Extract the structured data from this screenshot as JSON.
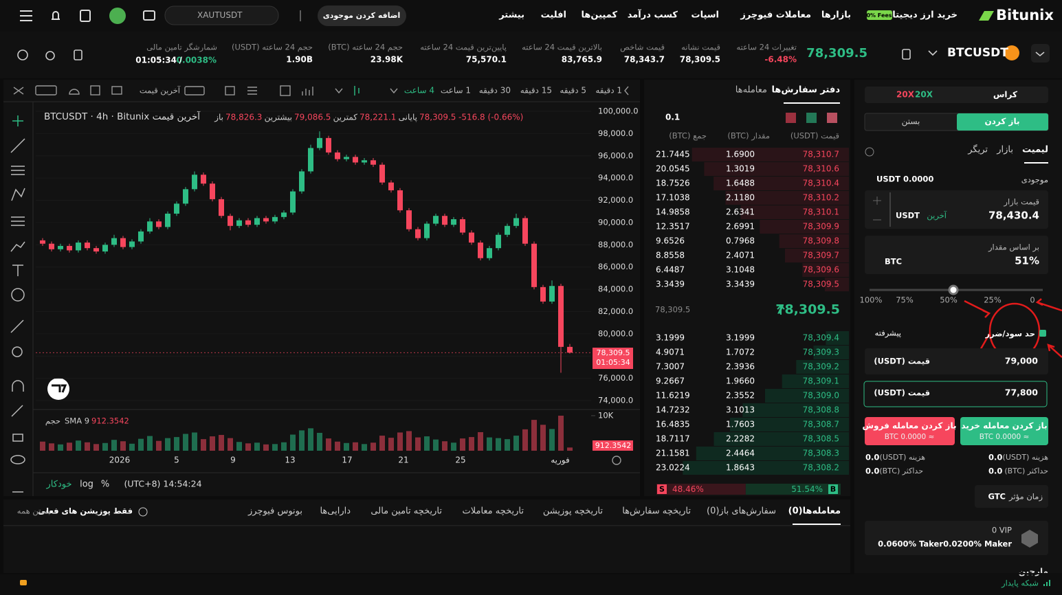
{
  "header": {
    "logo": "Bitunix",
    "badge": "0% Fees",
    "nav": [
      "خرید ارز دیجیتال",
      "بازارها",
      "معاملات فیوچرز",
      "اسپات",
      "کسب درآمد",
      "کمپین‌ها",
      "افلیت",
      "بیشتر"
    ],
    "deposit": "اضافه کردن موجودی",
    "search": "XAUTUSDT"
  },
  "ticker": {
    "symbol": "BTCUSDT",
    "price": "78,309.5",
    "stats": [
      {
        "label": "تغییرات 24 ساعته",
        "value": "-6.48%"
      },
      {
        "label": "قیمت نشانه",
        "value": "78,309.5"
      },
      {
        "label": "قیمت شاخص",
        "value": "78,343.7"
      },
      {
        "label": "بالاترین قیمت 24 ساعته",
        "value": "83,765.9"
      },
      {
        "label": "پایین‌ترین قیمت 24 ساعته",
        "value": "75,570.1"
      },
      {
        "label": "حجم 24 ساعته (BTC)",
        "value": "23.98K"
      },
      {
        "label": "حجم 24 ساعته (USDT)",
        "value": "1.90B"
      }
    ],
    "funding_label": "شمارشگر تامین مالی",
    "funding_countdown": "01:05:34",
    "funding_separator": "/",
    "funding_rate": "0.0038%"
  },
  "toolbar": {
    "intervals": [
      "1 دقیقه",
      "5 دقیقه",
      "15 دقیقه",
      "30 دقیقه",
      "1 ساعت",
      "4 ساعت"
    ],
    "price_type": "آخرین قیمت"
  },
  "chart": {
    "legend": "BTCUSDT · 4h · Bitunix آخرین قیمت",
    "ohlc_labels": [
      "باز",
      "بیشترین",
      "کمترین",
      "پایانی"
    ],
    "ohlc_values": [
      "78,826.3",
      "79,086.5",
      "78,221.1",
      "78,309.5"
    ],
    "change": "-516.8 (-0.66%)",
    "ylim": [
      74000,
      100000
    ],
    "yticks": [
      {
        "value": 100000,
        "label": "100,000.0"
      },
      {
        "value": 98000,
        "label": "98,000.0"
      },
      {
        "value": 96000,
        "label": "96,000.0"
      },
      {
        "value": 94000,
        "label": "94,000.0"
      },
      {
        "value": 92000,
        "label": "92,000.0"
      },
      {
        "value": 90000,
        "label": "90,000.0"
      },
      {
        "value": 88000,
        "label": "88,000.0"
      },
      {
        "value": 86000,
        "label": "86,000.0"
      },
      {
        "value": 84000,
        "label": "84,000.0"
      },
      {
        "value": 82000,
        "label": "82,000.0"
      },
      {
        "value": 80000,
        "label": "80,000.0"
      },
      {
        "value": 78000,
        "label": "78,000.0"
      },
      {
        "value": 76000,
        "label": "76,000.0"
      },
      {
        "value": 74000,
        "label": "74,000.0"
      }
    ],
    "candles": [
      [
        88400,
        88600,
        87900,
        88100
      ],
      [
        88100,
        88300,
        87400,
        87600
      ],
      [
        87600,
        88100,
        87400,
        87900
      ],
      [
        87900,
        88100,
        87300,
        87500
      ],
      [
        87500,
        88400,
        87300,
        88200
      ],
      [
        88200,
        88400,
        87500,
        87700
      ],
      [
        87700,
        87900,
        87200,
        87400
      ],
      [
        87400,
        88200,
        87200,
        88000
      ],
      [
        88000,
        88900,
        87800,
        88600
      ],
      [
        88600,
        88800,
        87600,
        87800
      ],
      [
        87800,
        88500,
        87600,
        88300
      ],
      [
        88300,
        89400,
        88100,
        89200
      ],
      [
        89200,
        90400,
        89000,
        90100
      ],
      [
        90100,
        90300,
        89400,
        89600
      ],
      [
        89600,
        91000,
        89400,
        90800
      ],
      [
        90800,
        91900,
        90600,
        91700
      ],
      [
        91700,
        93200,
        91500,
        93000
      ],
      [
        93000,
        94600,
        92800,
        94300
      ],
      [
        94300,
        94500,
        93300,
        93500
      ],
      [
        93500,
        93700,
        91900,
        92100
      ],
      [
        92100,
        92300,
        90400,
        90600
      ],
      [
        90600,
        90800,
        89300,
        89700
      ],
      [
        89700,
        90400,
        89500,
        90200
      ],
      [
        90200,
        90400,
        89600,
        89800
      ],
      [
        89800,
        90600,
        89600,
        90400
      ],
      [
        90400,
        90600,
        89900,
        90100
      ],
      [
        90100,
        90700,
        89900,
        90500
      ],
      [
        90500,
        91100,
        90300,
        90900
      ],
      [
        90900,
        93000,
        90700,
        92800
      ],
      [
        92800,
        94800,
        92600,
        94600
      ],
      [
        94600,
        97000,
        94400,
        96700
      ],
      [
        96700,
        98200,
        96500,
        97600
      ],
      [
        97600,
        97800,
        96100,
        96300
      ],
      [
        96300,
        96500,
        95500,
        95700
      ],
      [
        95700,
        96100,
        95500,
        95900
      ],
      [
        95900,
        96100,
        95200,
        95400
      ],
      [
        95400,
        95800,
        95200,
        95600
      ],
      [
        95600,
        95800,
        95000,
        95200
      ],
      [
        95200,
        95400,
        93400,
        93600
      ],
      [
        93600,
        93800,
        92700,
        92900
      ],
      [
        92900,
        93100,
        90900,
        91100
      ],
      [
        91100,
        91300,
        89200,
        89400
      ],
      [
        89400,
        89600,
        88400,
        88600
      ],
      [
        88600,
        90100,
        88400,
        89900
      ],
      [
        89900,
        90800,
        89700,
        90600
      ],
      [
        90600,
        90800,
        89600,
        89800
      ],
      [
        89800,
        90500,
        89600,
        90300
      ],
      [
        90300,
        90500,
        88900,
        89100
      ],
      [
        89100,
        89300,
        88000,
        88200
      ],
      [
        88200,
        88400,
        86600,
        86800
      ],
      [
        86800,
        87900,
        86600,
        87700
      ],
      [
        87700,
        89100,
        87500,
        88900
      ],
      [
        88900,
        89900,
        88700,
        89700
      ],
      [
        89700,
        90800,
        89500,
        90400
      ],
      [
        90400,
        90600,
        87900,
        88100
      ],
      [
        88100,
        88300,
        84000,
        84200
      ],
      [
        84200,
        84400,
        82700,
        82900
      ],
      [
        82900,
        84800,
        82700,
        84300
      ],
      [
        84300,
        84500,
        76500,
        78826.3
      ],
      [
        78826.3,
        79086.5,
        78221.1,
        78309.5
      ]
    ],
    "price_tag": "78,309.5",
    "countdown": "01:05:34",
    "volume_label": "حجم",
    "volume_sma": "SMA 9",
    "volume_sma_value": "912.3542",
    "volume_ylim": [
      0,
      10000
    ],
    "volume_yticks": [
      {
        "value": 10000,
        "label": "10K"
      }
    ],
    "volumes": [
      2600,
      2100,
      1800,
      2300,
      2900,
      2400,
      1900,
      2200,
      3100,
      2700,
      2000,
      3400,
      4200,
      2800,
      3600,
      3900,
      4800,
      5200,
      3300,
      4100,
      4500,
      3600,
      2500,
      2100,
      2300,
      1800,
      1900,
      2400,
      4600,
      5800,
      6400,
      5100,
      3500,
      2600,
      2200,
      2400,
      1900,
      2300,
      4300,
      3700,
      5200,
      5600,
      3800,
      4100,
      3200,
      2700,
      2300,
      3500,
      3900,
      5300,
      3800,
      3600,
      3300,
      4300,
      6100,
      8800,
      7400,
      6200,
      10000,
      912.3542
    ],
    "volume_tag": "912.3542",
    "x_labels": [
      "2026",
      "5",
      "9",
      "13",
      "17",
      "21",
      "25",
      "فوریه"
    ],
    "time": "(UTC+8) 14:54:24",
    "percent": "%",
    "log": "log",
    "auto": "خودکار"
  },
  "orderbook": {
    "tabs": [
      "دفتر سفارش‌ها",
      "معامله‌ها"
    ],
    "precision": "0.1",
    "headers": [
      "قیمت (USDT)",
      "مقدار (BTC)",
      "جمع (BTC)"
    ],
    "asks": [
      [
        "78,310.7",
        "1.6900",
        21.7445
      ],
      [
        "78,310.6",
        "1.3019",
        20.0545
      ],
      [
        "78,310.4",
        "1.6488",
        18.7526
      ],
      [
        "78,310.2",
        "2.1180",
        17.1038
      ],
      [
        "78,310.1",
        "2.6341",
        14.9858
      ],
      [
        "78,309.9",
        "2.6991",
        12.3517
      ],
      [
        "78,309.8",
        "0.7968",
        9.6526
      ],
      [
        "78,309.7",
        "2.4071",
        8.8558
      ],
      [
        "78,309.6",
        "3.1048",
        6.4487
      ],
      [
        "78,309.5",
        "3.3439",
        3.3439
      ]
    ],
    "last_price": "78,309.5",
    "mark_price": "78,309.5",
    "bids": [
      [
        "78,309.4",
        "3.1999",
        3.1999
      ],
      [
        "78,309.3",
        "1.7072",
        4.9071
      ],
      [
        "78,309.2",
        "2.3936",
        7.3007
      ],
      [
        "78,309.1",
        "1.9660",
        9.2667
      ],
      [
        "78,309.0",
        "2.3552",
        11.6219
      ],
      [
        "78,308.8",
        "3.1013",
        14.7232
      ],
      [
        "78,308.7",
        "1.7603",
        16.4835
      ],
      [
        "78,308.5",
        "2.2282",
        18.7117
      ],
      [
        "78,308.3",
        "2.4464",
        21.1581
      ],
      [
        "78,308.2",
        "1.8643",
        23.0224
      ]
    ],
    "sell_letter": "S",
    "buy_letter": "B",
    "sell_ratio": {
      "value": 48.46,
      "label": "48.46%"
    },
    "buy_ratio": {
      "value": 51.54,
      "label": "51.54%"
    }
  },
  "bottom": {
    "tabs": [
      "معامله‌ها(0)",
      "سفارش‌های باز(0)",
      "تاریخچه سفارش‌ها",
      "تاریخچه پوزیشن",
      "تاریخچه معاملات",
      "تاریخچه تامین مالی",
      "دارایی‌ها",
      "بونوس فیوچرز"
    ],
    "current_only": "فقط پوزیشن های فعلی",
    "close_all": "بستن همه"
  },
  "order": {
    "margin_mode": "کراس",
    "leverage_long": "20X",
    "leverage_short": "20X",
    "open": "باز کردن",
    "close": "بستن",
    "order_types": [
      "لیمیت",
      "بازار",
      "تریگر"
    ],
    "balance_label": "موجودی",
    "balance": "USDT 0.0000",
    "price_label": "قیمت بازار",
    "price": "78,430.4",
    "price_ref": "آخرین",
    "price_unit": "USDT",
    "amount_label": "بر اساس مقدار",
    "amount": "51%",
    "amount_unit": "BTC",
    "slider": [
      "100%",
      "75%",
      "50%",
      "25%",
      "0"
    ],
    "tpsl": "حد سود/ضرر",
    "advanced": "پیشرفته",
    "tp_label": "قیمت (USDT)",
    "tp": "79,000",
    "sl_label": "قیمت (USDT)",
    "sl": "77,800",
    "buy": "باز کردن معامله خرید",
    "buy_sub": "BTC 0.0000 ≈",
    "sell": "باز کردن معامله فروش",
    "sell_sub": "BTC 0.0000 ≈",
    "fee_label": "هزینه (USDT)",
    "max_label": "حداکثر (BTC)",
    "buy_fee": "0.0",
    "buy_max": "0.0",
    "sell_fee": "0.0",
    "sell_max": "0.0",
    "tif_label": "زمان مؤثر",
    "tif": "GTC",
    "vip": "0 VIP",
    "maker": "0.0200% Maker",
    "taker": "0.0600% Taker",
    "margin": "مارجین"
  },
  "footer": {
    "network": "شبکه پایدار"
  }
}
